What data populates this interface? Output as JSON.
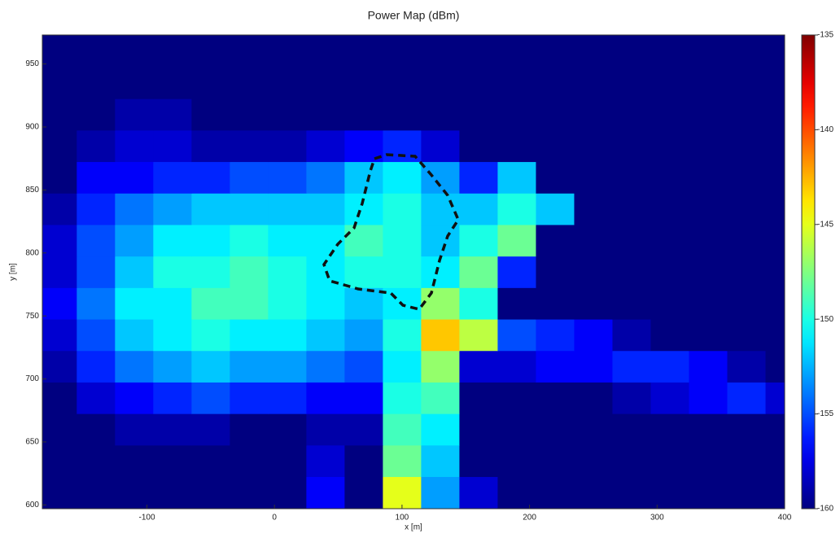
{
  "chart_data": {
    "type": "heatmap",
    "title": "Power Map (dBm)",
    "xlabel": "x [m]",
    "ylabel": "y [m]",
    "x": [
      -170,
      -140,
      -110,
      -80,
      -50,
      -20,
      10,
      40,
      70,
      100,
      130,
      160,
      190,
      220,
      250,
      280,
      310,
      340,
      370,
      400
    ],
    "y": [
      610,
      635,
      660,
      685,
      710,
      735,
      760,
      785,
      810,
      835,
      860,
      885,
      910,
      935,
      960
    ],
    "values": [
      [
        -160,
        -160,
        -160,
        -160,
        -160,
        -160,
        -160,
        -157,
        -160,
        -145,
        -153,
        -158,
        -160,
        -160,
        -160,
        -160,
        -160,
        -160,
        -160,
        -160
      ],
      [
        -160,
        -160,
        -160,
        -160,
        -160,
        -160,
        -160,
        -158,
        -160,
        -148,
        -152,
        -160,
        -160,
        -160,
        -160,
        -160,
        -160,
        -160,
        -160,
        -160
      ],
      [
        -160,
        -160,
        -159,
        -159,
        -159,
        -160,
        -160,
        -159,
        -159,
        -149,
        -151,
        -160,
        -160,
        -160,
        -160,
        -160,
        -160,
        -160,
        -160,
        -160
      ],
      [
        -160,
        -158,
        -157,
        -156,
        -155,
        -156,
        -156,
        -157,
        -157,
        -150,
        -149,
        -160,
        -160,
        -160,
        -160,
        -159,
        -158,
        -157,
        -156,
        -158
      ],
      [
        -159,
        -156,
        -154,
        -153,
        -152,
        -153,
        -153,
        -154,
        -155,
        -151,
        -147,
        -158,
        -158,
        -157,
        -157,
        -156,
        -156,
        -157,
        -159,
        -160
      ],
      [
        -158,
        -155,
        -152,
        -151,
        -150,
        -151,
        -151,
        -152,
        -153,
        -150,
        -143,
        -146,
        -155,
        -156,
        -157,
        -159,
        -160,
        -160,
        -160,
        -160
      ],
      [
        -157,
        -154,
        -151,
        -151,
        -149,
        -149,
        -150,
        -151,
        -152,
        -151,
        -147,
        -150,
        -160,
        -160,
        -160,
        -160,
        -160,
        -160,
        -160,
        -160
      ],
      [
        -158,
        -155,
        -152,
        -150,
        -150,
        -149,
        -150,
        -151,
        -150,
        -150,
        -151,
        -148,
        -156,
        -160,
        -160,
        -160,
        -160,
        -160,
        -160,
        -160
      ],
      [
        -158,
        -155,
        -153,
        -151,
        -151,
        -150,
        -151,
        -151,
        -149,
        -150,
        -152,
        -150,
        -148,
        -160,
        -160,
        -160,
        -160,
        -160,
        -160,
        -160
      ],
      [
        -159,
        -156,
        -154,
        -153,
        -152,
        -152,
        -152,
        -152,
        -151,
        -150,
        -152,
        -152,
        -150,
        -152,
        -160,
        -160,
        -160,
        -160,
        -160,
        -160
      ],
      [
        -160,
        -157,
        -157,
        -156,
        -156,
        -155,
        -155,
        -154,
        -152,
        -151,
        -153,
        -156,
        -152,
        -160,
        -160,
        -160,
        -160,
        -160,
        -160,
        -160
      ],
      [
        -160,
        -159,
        -158,
        -158,
        -159,
        -159,
        -159,
        -158,
        -157,
        -156,
        -158,
        -160,
        -160,
        -160,
        -160,
        -160,
        -160,
        -160,
        -160,
        -160
      ],
      [
        -160,
        -160,
        -159,
        -159,
        -160,
        -160,
        -160,
        -160,
        -160,
        -160,
        -160,
        -160,
        -160,
        -160,
        -160,
        -160,
        -160,
        -160,
        -160,
        -160
      ],
      [
        -160,
        -160,
        -160,
        -160,
        -160,
        -160,
        -160,
        -160,
        -160,
        -160,
        -160,
        -160,
        -160,
        -160,
        -160,
        -160,
        -160,
        -160,
        -160,
        -160
      ],
      [
        -160,
        -160,
        -160,
        -160,
        -160,
        -160,
        -160,
        -160,
        -160,
        -160,
        -160,
        -160,
        -160,
        -160,
        -160,
        -160,
        -160,
        -160,
        -160,
        -160
      ]
    ],
    "xlim": [
      -182,
      400
    ],
    "ylim": [
      597,
      973
    ],
    "xticks": [
      -100,
      0,
      100,
      200,
      300,
      400
    ],
    "yticks": [
      600,
      650,
      700,
      750,
      800,
      850,
      900,
      950
    ],
    "clim": [
      -160,
      -135
    ],
    "cticks": [
      -160,
      -155,
      -150,
      -145,
      -140,
      -135
    ],
    "colormap": "jet"
  }
}
